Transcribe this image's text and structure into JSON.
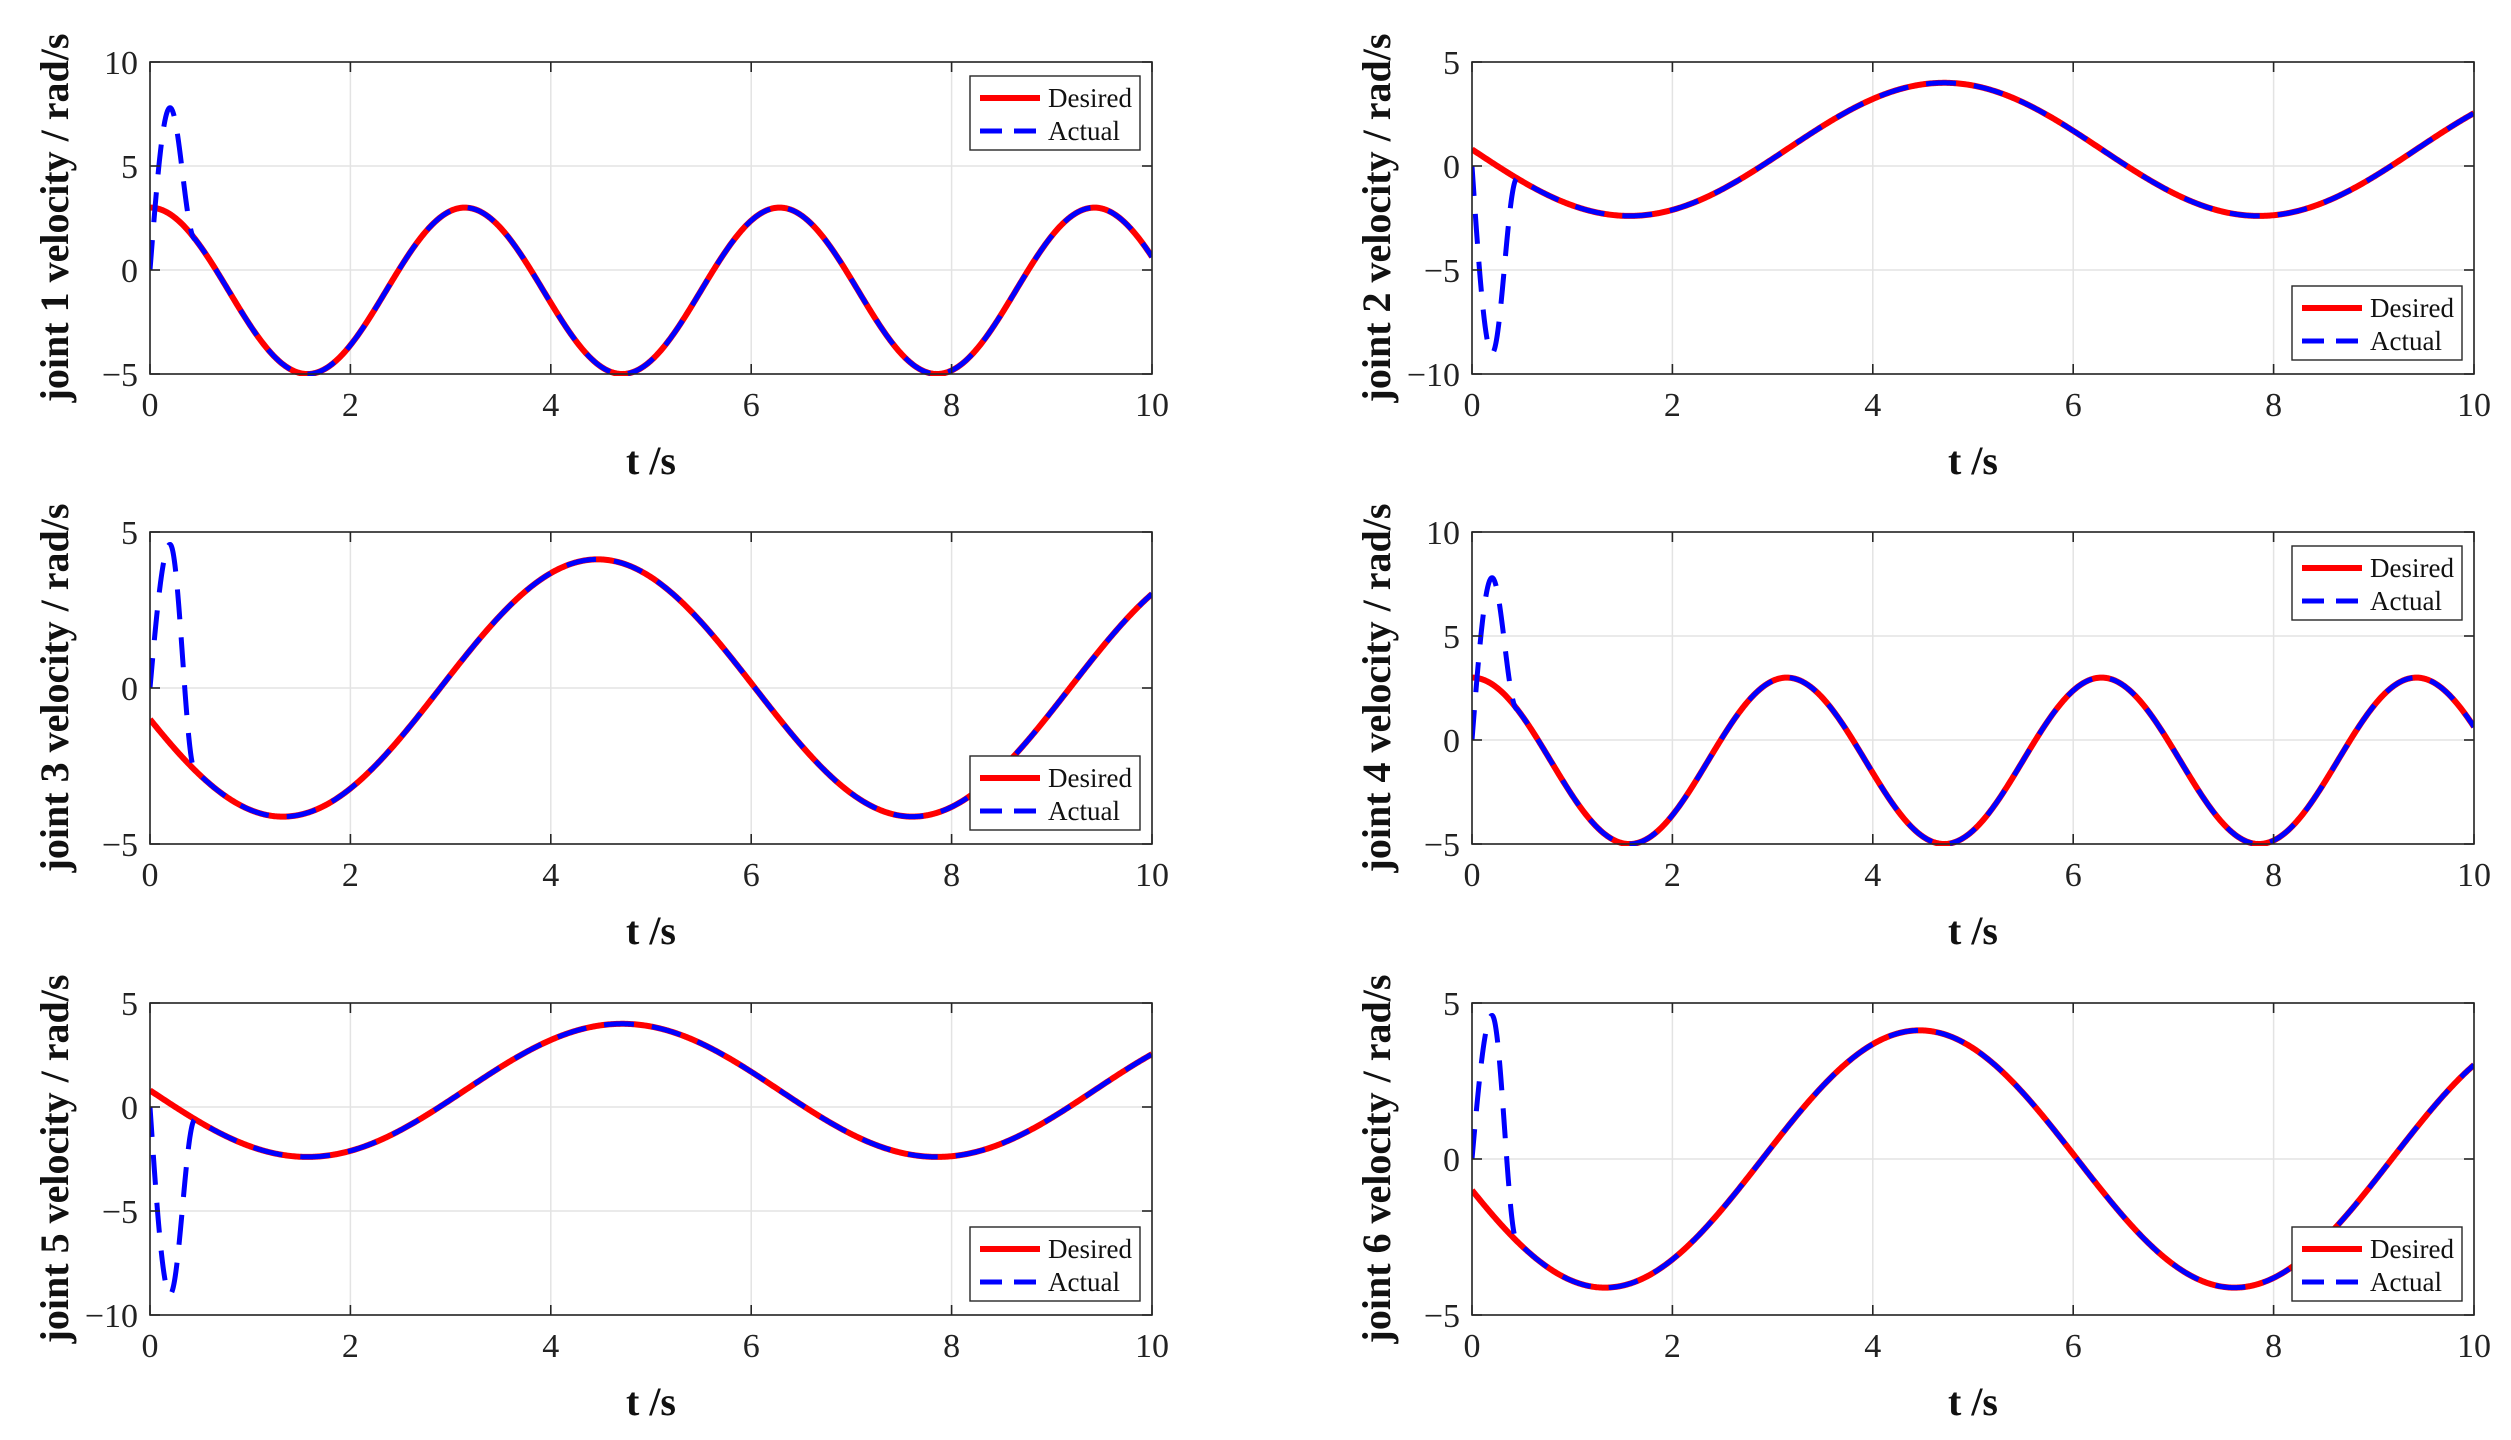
{
  "chart_data": [
    {
      "type": "line",
      "xlabel": "t /s",
      "ylabel": "joint 1 velocity / rad/s",
      "xlim": [
        0,
        10
      ],
      "ylim": [
        -5,
        10
      ],
      "xticks": [
        0,
        2,
        4,
        6,
        8,
        10
      ],
      "yticks": [
        -5,
        0,
        5,
        10
      ],
      "legend_position": "top-right",
      "grid": true,
      "desired_model": {
        "a": -1.0,
        "b": 4.0,
        "c": 0.0,
        "w": 2.0
      },
      "actual_transient": {
        "peak": 7.8,
        "peak_t": 0.2,
        "join_t": 0.45
      },
      "series": [
        {
          "name": "Desired",
          "color": "#ff0000",
          "style": "solid"
        },
        {
          "name": "Actual",
          "color": "#0000ff",
          "style": "dashed"
        }
      ]
    },
    {
      "type": "line",
      "xlabel": "t /s",
      "ylabel": "joint 2 velocity / rad/s",
      "xlim": [
        0,
        10
      ],
      "ylim": [
        -10,
        5
      ],
      "xticks": [
        0,
        2,
        4,
        6,
        8,
        10
      ],
      "yticks": [
        -10,
        -5,
        0,
        5
      ],
      "legend_position": "bottom-right",
      "grid": true,
      "desired_model": {
        "a": 0.8,
        "b": 0.0,
        "c": -3.2,
        "w": 1.0
      },
      "actual_transient": {
        "peak": -9.0,
        "peak_t": 0.2,
        "join_t": 0.45
      },
      "series": [
        {
          "name": "Desired",
          "color": "#ff0000",
          "style": "solid"
        },
        {
          "name": "Actual",
          "color": "#0000ff",
          "style": "dashed"
        }
      ]
    },
    {
      "type": "line",
      "xlabel": "t /s",
      "ylabel": "joint 3 velocity / rad/s",
      "xlim": [
        0,
        10
      ],
      "ylim": [
        -5,
        5
      ],
      "xticks": [
        0,
        2,
        4,
        6,
        8,
        10
      ],
      "yticks": [
        -5,
        0,
        5
      ],
      "legend_position": "bottom-right",
      "grid": true,
      "desired_model": {
        "a": 0.0,
        "b": -1.0,
        "c": -4.0,
        "w": 1.0
      },
      "actual_transient": {
        "peak": 4.6,
        "peak_t": 0.2,
        "join_t": 0.45
      },
      "series": [
        {
          "name": "Desired",
          "color": "#ff0000",
          "style": "solid"
        },
        {
          "name": "Actual",
          "color": "#0000ff",
          "style": "dashed"
        }
      ]
    },
    {
      "type": "line",
      "xlabel": "t /s",
      "ylabel": "joint 4 velocity / rad/s",
      "xlim": [
        0,
        10
      ],
      "ylim": [
        -5,
        10
      ],
      "xticks": [
        0,
        2,
        4,
        6,
        8,
        10
      ],
      "yticks": [
        -5,
        0,
        5,
        10
      ],
      "legend_position": "top-right",
      "grid": true,
      "desired_model": {
        "a": -1.0,
        "b": 4.0,
        "c": 0.0,
        "w": 2.0
      },
      "actual_transient": {
        "peak": 7.8,
        "peak_t": 0.2,
        "join_t": 0.45
      },
      "series": [
        {
          "name": "Desired",
          "color": "#ff0000",
          "style": "solid"
        },
        {
          "name": "Actual",
          "color": "#0000ff",
          "style": "dashed"
        }
      ]
    },
    {
      "type": "line",
      "xlabel": "t /s",
      "ylabel": "joint 5 velocity / rad/s",
      "xlim": [
        0,
        10
      ],
      "ylim": [
        -10,
        5
      ],
      "xticks": [
        0,
        2,
        4,
        6,
        8,
        10
      ],
      "yticks": [
        -10,
        -5,
        0,
        5
      ],
      "legend_position": "bottom-right",
      "grid": true,
      "desired_model": {
        "a": 0.8,
        "b": 0.0,
        "c": -3.2,
        "w": 1.0
      },
      "actual_transient": {
        "peak": -9.0,
        "peak_t": 0.2,
        "join_t": 0.45
      },
      "series": [
        {
          "name": "Desired",
          "color": "#ff0000",
          "style": "solid"
        },
        {
          "name": "Actual",
          "color": "#0000ff",
          "style": "dashed"
        }
      ]
    },
    {
      "type": "line",
      "xlabel": "t /s",
      "ylabel": "joint 6 velocity / rad/s",
      "xlim": [
        0,
        10
      ],
      "ylim": [
        -5,
        5
      ],
      "xticks": [
        0,
        2,
        4,
        6,
        8,
        10
      ],
      "yticks": [
        -5,
        0,
        5
      ],
      "legend_position": "bottom-right",
      "grid": true,
      "desired_model": {
        "a": 0.0,
        "b": -1.0,
        "c": -4.0,
        "w": 1.0
      },
      "actual_transient": {
        "peak": 4.6,
        "peak_t": 0.2,
        "join_t": 0.45
      },
      "series": [
        {
          "name": "Desired",
          "color": "#ff0000",
          "style": "solid"
        },
        {
          "name": "Actual",
          "color": "#0000ff",
          "style": "dashed"
        }
      ]
    }
  ]
}
